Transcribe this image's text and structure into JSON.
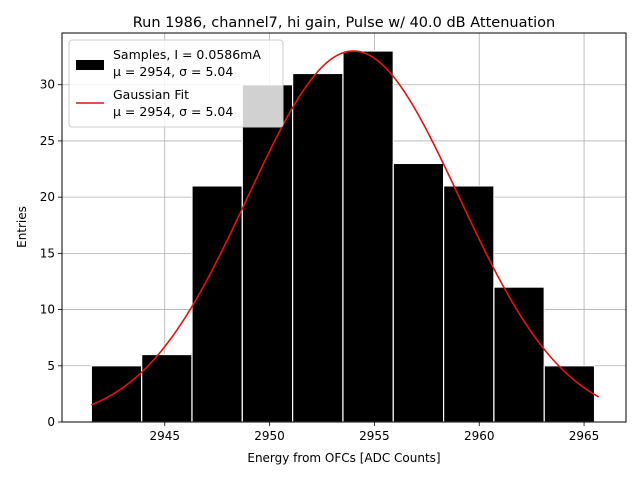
{
  "chart_data": {
    "type": "bar",
    "title": "Run 1986, channel7, hi gain, Pulse w/ 40.0 dB Attenuation",
    "xlabel": "Energy from OFCs [ADC Counts]",
    "ylabel": "Entries",
    "xlim": [
      2940.1,
      2967.0
    ],
    "ylim": [
      0,
      34.6
    ],
    "xticks": [
      2945,
      2950,
      2955,
      2960,
      2965
    ],
    "yticks": [
      0,
      5,
      10,
      15,
      20,
      25,
      30
    ],
    "grid": true,
    "legend_position": "upper-left",
    "histogram": {
      "name": "Samples, I = 0.0586mA",
      "stats_label": "μ = 2954, σ = 5.04",
      "color": "#000000",
      "bin_edges": [
        2941.5,
        2943.9,
        2946.3,
        2948.7,
        2951.1,
        2953.5,
        2955.9,
        2958.3,
        2960.7,
        2963.1,
        2965.5
      ],
      "counts": [
        5,
        6,
        21,
        30,
        31,
        33,
        23,
        21,
        12,
        5
      ]
    },
    "fit": {
      "name": "Gaussian Fit",
      "stats_label": "μ = 2954, σ = 5.04",
      "color": "#e81010",
      "amplitude": 33,
      "mu": 2954,
      "sigma": 5.04,
      "x_range": [
        2941.5,
        2965.7
      ]
    }
  }
}
